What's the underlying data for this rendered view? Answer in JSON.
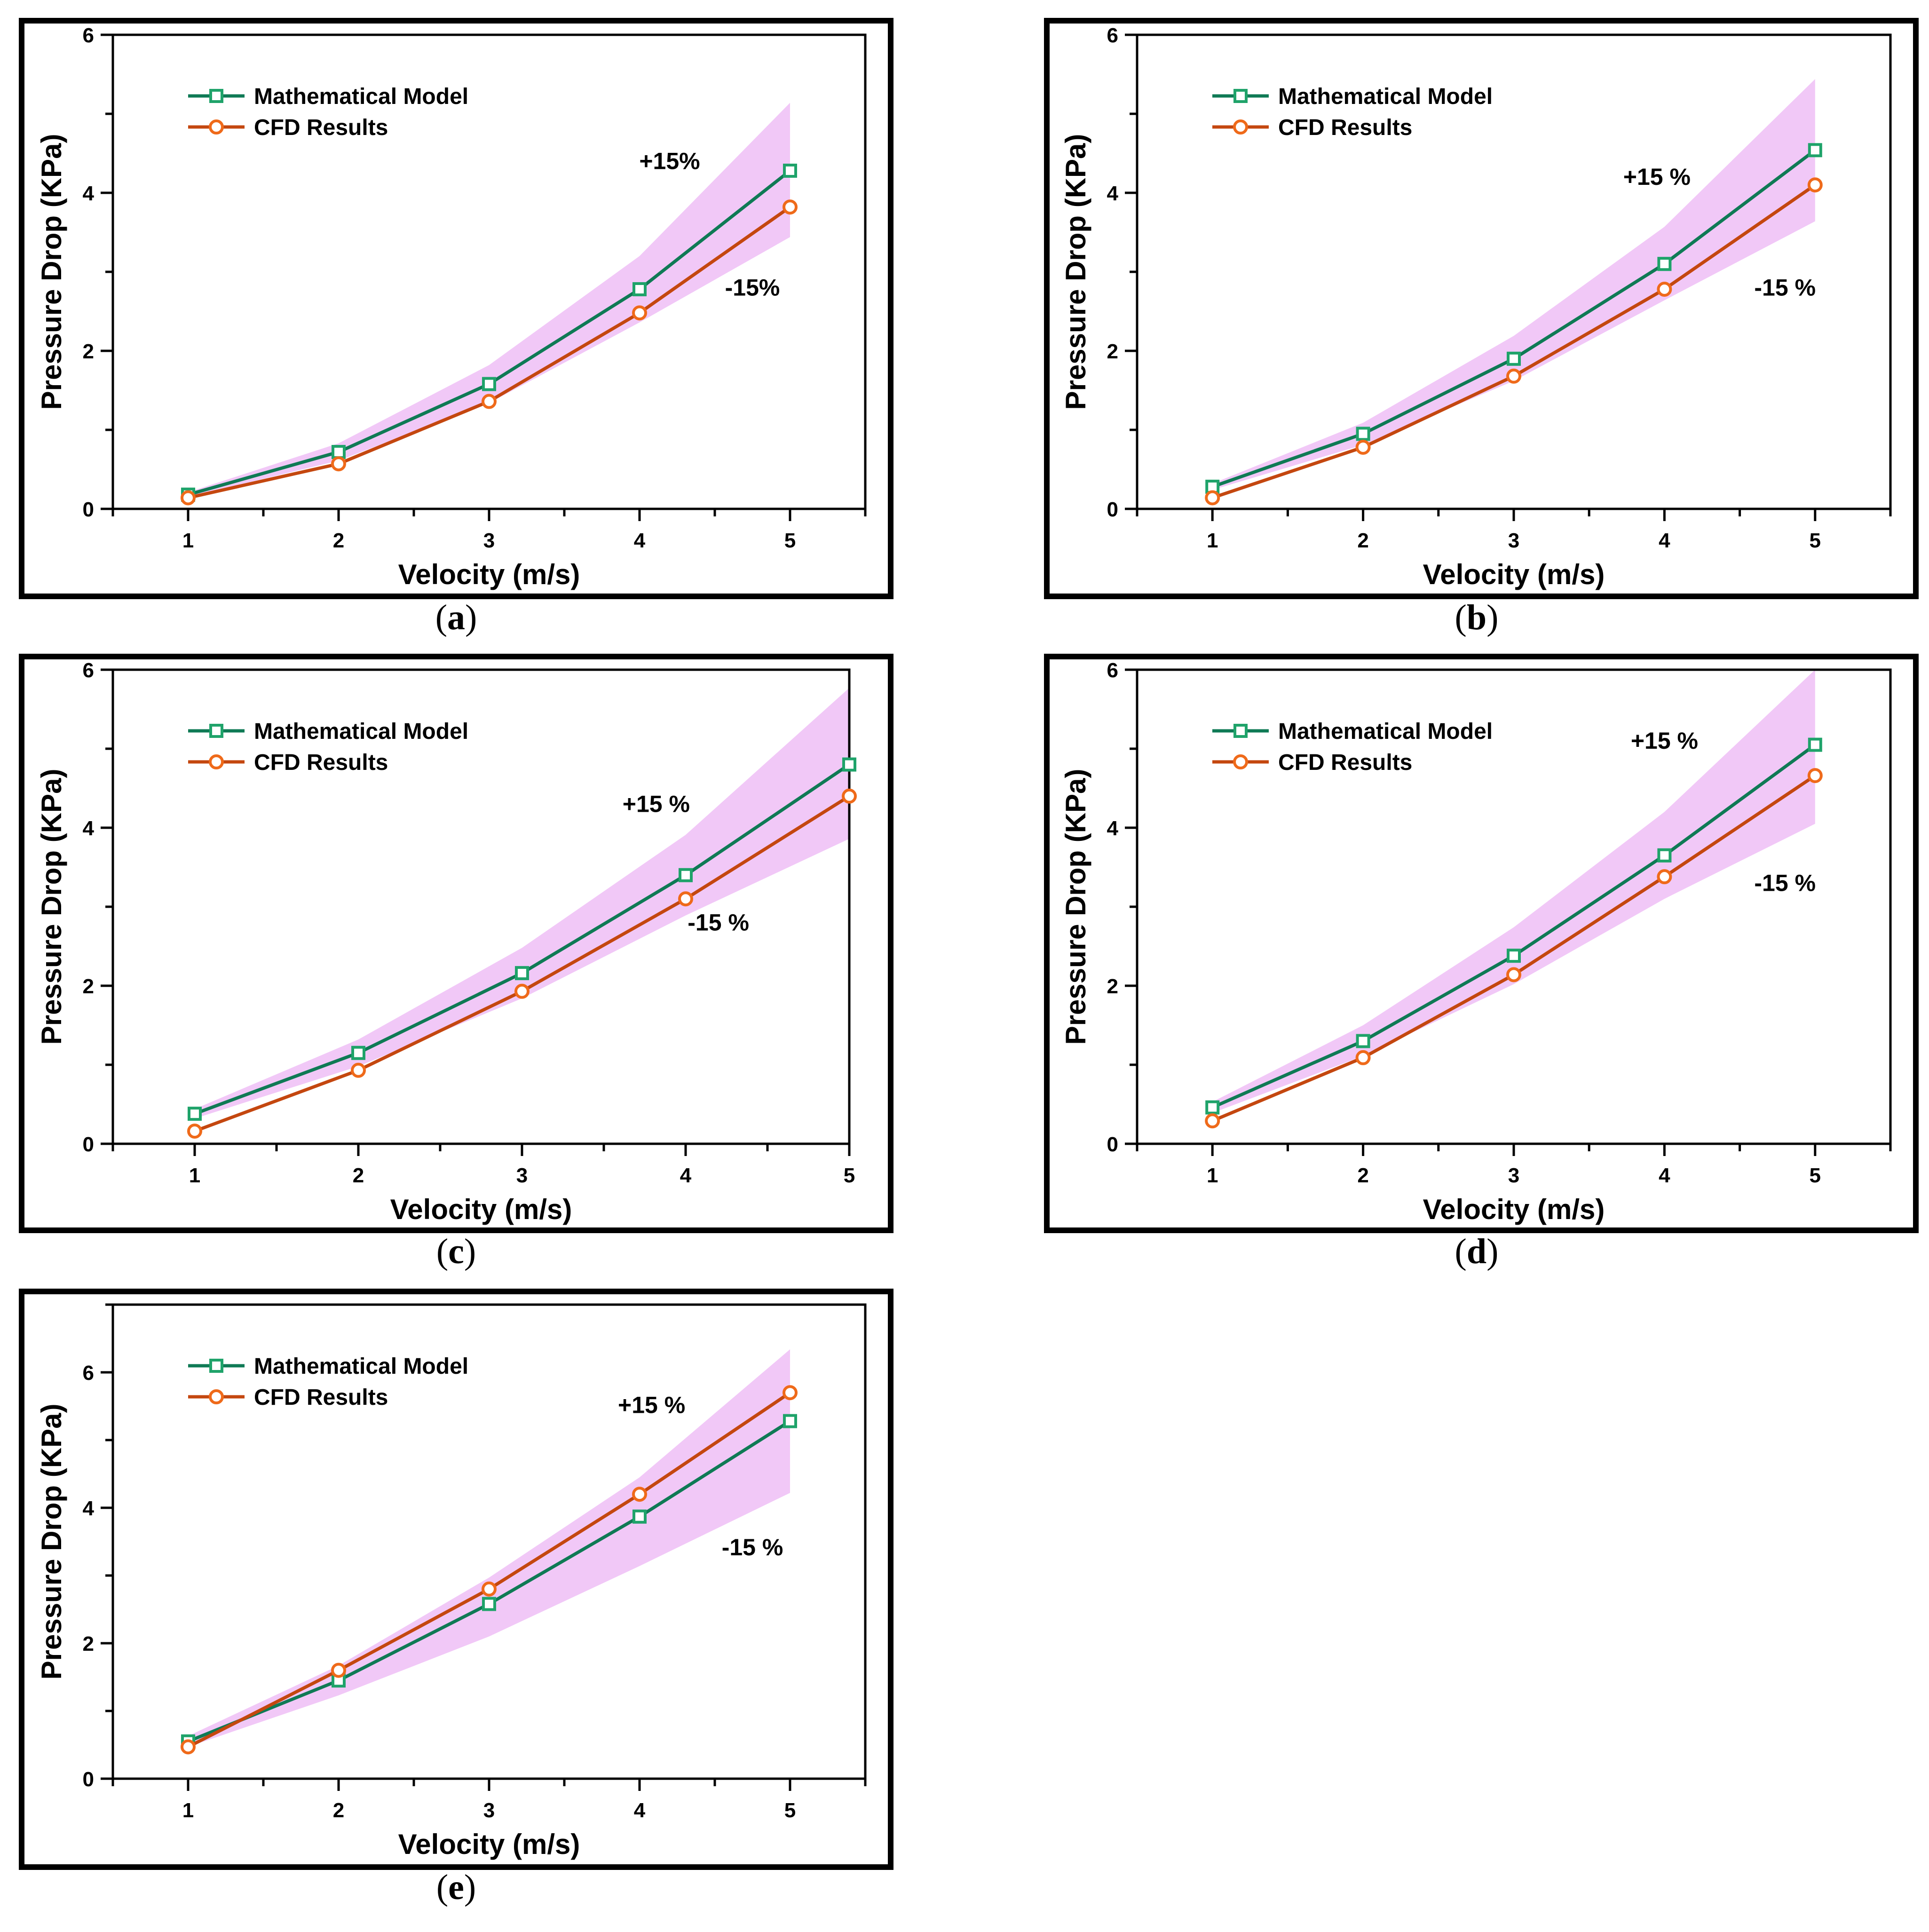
{
  "colors": {
    "model": "#0f7a55",
    "model_marker": "#1fa36a",
    "cfd": "#c4470f",
    "cfd_marker": "#ef6a1a",
    "band": "#f1c8f7",
    "frame": "#000000"
  },
  "chart_data": [
    {
      "panel": "a",
      "caption_letter": "a",
      "type": "line",
      "xlabel": "Velocity (m/s)",
      "ylabel": "Pressure Drop (KPa)",
      "x": [
        1,
        2,
        3,
        4,
        5
      ],
      "xlim": [
        0.5,
        5.5
      ],
      "ylim": [
        0,
        6
      ],
      "xticks": [
        1,
        2,
        3,
        4,
        5
      ],
      "yticks": [
        0,
        2,
        4,
        6
      ],
      "legend": "top-left",
      "grid": false,
      "series": [
        {
          "name": "Mathematical Model",
          "values": [
            0.18,
            0.72,
            1.58,
            2.78,
            4.28
          ],
          "marker": "square"
        },
        {
          "name": "CFD Results",
          "values": [
            0.14,
            0.57,
            1.36,
            2.48,
            3.82
          ],
          "marker": "circle"
        }
      ],
      "band": {
        "upper": [
          0.21,
          0.83,
          1.82,
          3.2,
          5.14
        ],
        "lower": [
          0.15,
          0.61,
          1.34,
          2.36,
          3.44
        ]
      },
      "annotations": [
        {
          "text": "+15%",
          "x": 4.2,
          "y": 4.3
        },
        {
          "text": "-15%",
          "x": 4.75,
          "y": 2.7
        }
      ]
    },
    {
      "panel": "b",
      "caption_letter": "b",
      "type": "line",
      "xlabel": "Velocity (m/s)",
      "ylabel": "Pressure Drop (KPa)",
      "x": [
        1,
        2,
        3,
        4,
        5
      ],
      "xlim": [
        0.5,
        5.5
      ],
      "ylim": [
        0,
        6
      ],
      "xticks": [
        1,
        2,
        3,
        4,
        5
      ],
      "yticks": [
        0,
        2,
        4,
        6
      ],
      "legend": "top-left",
      "grid": false,
      "series": [
        {
          "name": "Mathematical Model",
          "values": [
            0.28,
            0.95,
            1.9,
            3.1,
            4.54
          ],
          "marker": "square"
        },
        {
          "name": "CFD Results",
          "values": [
            0.14,
            0.78,
            1.68,
            2.78,
            4.1
          ],
          "marker": "circle"
        }
      ],
      "band": {
        "upper": [
          0.32,
          1.09,
          2.19,
          3.57,
          5.44
        ],
        "lower": [
          0.24,
          0.81,
          1.62,
          2.64,
          3.64
        ]
      },
      "annotations": [
        {
          "text": "+15 %",
          "x": 3.95,
          "y": 4.1
        },
        {
          "text": "-15 %",
          "x": 4.8,
          "y": 2.7
        }
      ]
    },
    {
      "panel": "c",
      "caption_letter": "c",
      "type": "line",
      "xlabel": "Velocity (m/s)",
      "ylabel": "Pressure Drop (KPa)",
      "x": [
        1,
        2,
        3,
        4,
        5
      ],
      "xlim": [
        0.5,
        5.0
      ],
      "ylim": [
        0,
        6
      ],
      "xticks": [
        1,
        2,
        3,
        4,
        5
      ],
      "yticks": [
        0,
        2,
        4,
        6
      ],
      "legend": "top-left",
      "grid": false,
      "series": [
        {
          "name": "Mathematical Model",
          "values": [
            0.38,
            1.15,
            2.16,
            3.4,
            4.8
          ],
          "marker": "square"
        },
        {
          "name": "CFD Results",
          "values": [
            0.16,
            0.93,
            1.93,
            3.1,
            4.4
          ],
          "marker": "circle"
        }
      ],
      "band": {
        "upper": [
          0.44,
          1.32,
          2.48,
          3.91,
          5.77
        ],
        "lower": [
          0.32,
          0.98,
          1.84,
          2.89,
          3.86
        ]
      },
      "annotations": [
        {
          "text": "+15 %",
          "x": 3.82,
          "y": 4.2
        },
        {
          "text": "-15 %",
          "x": 4.2,
          "y": 2.7
        }
      ]
    },
    {
      "panel": "d",
      "caption_letter": "d",
      "type": "line",
      "xlabel": "Velocity (m/s)",
      "ylabel": "Pressure Drop (KPa)",
      "x": [
        1,
        2,
        3,
        4,
        5
      ],
      "xlim": [
        0.5,
        5.5
      ],
      "ylim": [
        0,
        6
      ],
      "xticks": [
        1,
        2,
        3,
        4,
        5
      ],
      "yticks": [
        0,
        2,
        4,
        6
      ],
      "legend": "top-left",
      "grid": false,
      "series": [
        {
          "name": "Mathematical Model",
          "values": [
            0.46,
            1.3,
            2.38,
            3.65,
            5.05
          ],
          "marker": "square"
        },
        {
          "name": "CFD Results",
          "values": [
            0.29,
            1.09,
            2.14,
            3.38,
            4.66
          ],
          "marker": "circle"
        }
      ],
      "band": {
        "upper": [
          0.53,
          1.5,
          2.74,
          4.2,
          6.0
        ],
        "lower": [
          0.39,
          1.11,
          2.02,
          3.1,
          4.05
        ]
      },
      "annotations": [
        {
          "text": "+15 %",
          "x": 4.0,
          "y": 5.0
        },
        {
          "text": "-15 %",
          "x": 4.8,
          "y": 3.2
        }
      ]
    },
    {
      "panel": "e",
      "caption_letter": "e",
      "type": "line",
      "xlabel": "Velocity (m/s)",
      "ylabel": "Pressure Drop (KPa)",
      "x": [
        1,
        2,
        3,
        4,
        5
      ],
      "xlim": [
        0.5,
        5.5
      ],
      "ylim": [
        0,
        7
      ],
      "xticks": [
        1,
        2,
        3,
        4,
        5
      ],
      "yticks": [
        0,
        2,
        4,
        6
      ],
      "legend": "top-left",
      "grid": false,
      "series": [
        {
          "name": "Mathematical Model",
          "values": [
            0.55,
            1.45,
            2.58,
            3.87,
            5.28
          ],
          "marker": "square"
        },
        {
          "name": "CFD Results",
          "values": [
            0.47,
            1.6,
            2.8,
            4.2,
            5.7
          ],
          "marker": "circle"
        }
      ],
      "band": {
        "upper": [
          0.63,
          1.67,
          2.97,
          4.45,
          6.34
        ],
        "lower": [
          0.47,
          1.23,
          2.1,
          3.14,
          4.22
        ]
      },
      "annotations": [
        {
          "text": "+15 %",
          "x": 4.08,
          "y": 5.4
        },
        {
          "text": "-15 %",
          "x": 4.75,
          "y": 3.3
        }
      ]
    }
  ]
}
